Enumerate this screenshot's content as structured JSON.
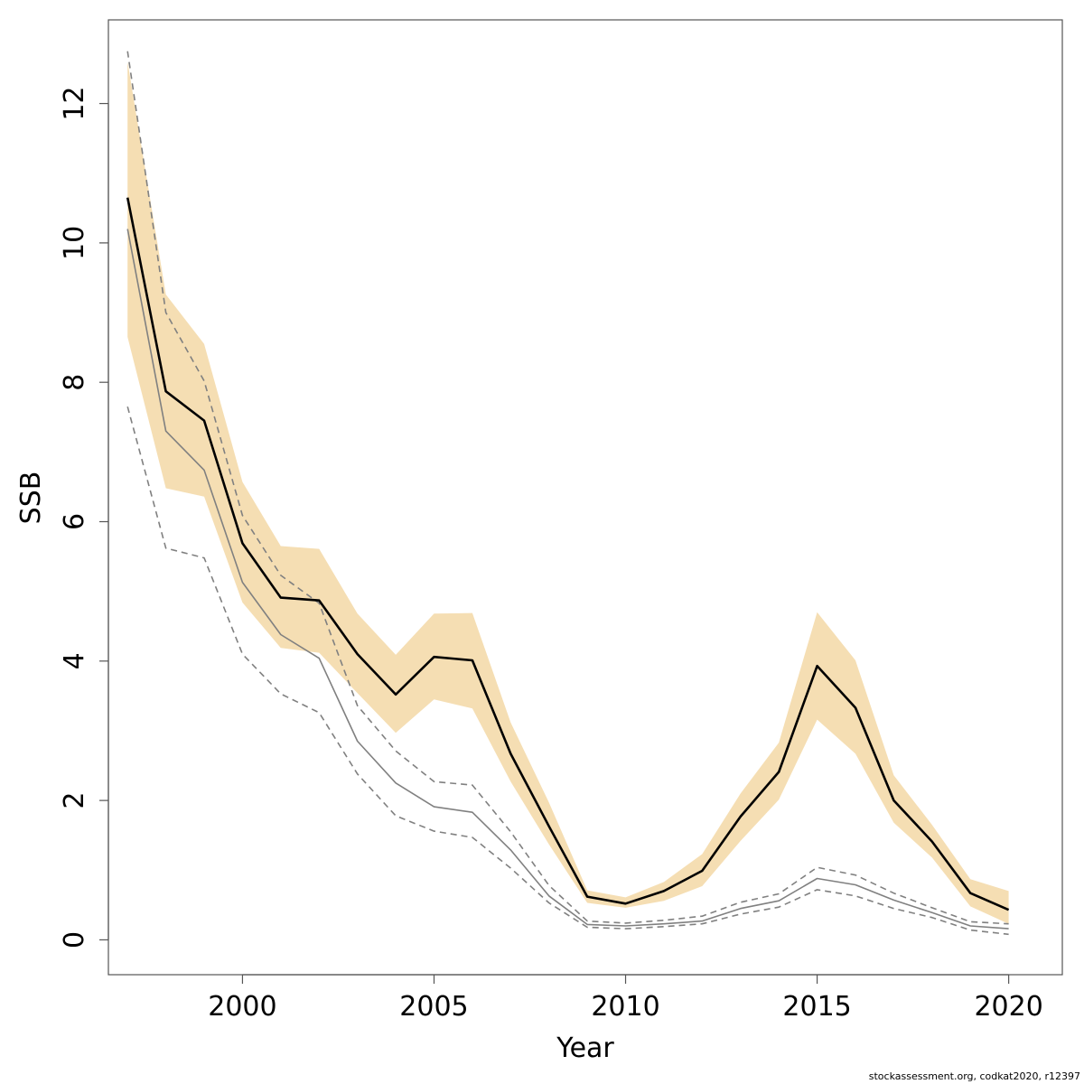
{
  "chart_data": {
    "type": "line",
    "xlabel": "Year",
    "ylabel": "SSB",
    "xlim": [
      1996.5,
      2021.4
    ],
    "ylim": [
      -0.5,
      13.2
    ],
    "xticks": [
      2000,
      2005,
      2010,
      2015,
      2020
    ],
    "yticks": [
      0,
      2,
      4,
      6,
      8,
      10,
      12
    ],
    "x": [
      1997,
      1998,
      1999,
      2000,
      2001,
      2002,
      2003,
      2004,
      2005,
      2006,
      2007,
      2008,
      2009,
      2010,
      2011,
      2012,
      2013,
      2014,
      2015,
      2016,
      2017,
      2018,
      2019,
      2020
    ],
    "band": {
      "color": "#F5DEB3",
      "lower": [
        8.65,
        6.48,
        6.36,
        4.84,
        4.19,
        4.12,
        3.54,
        2.97,
        3.45,
        3.32,
        2.27,
        1.37,
        0.53,
        0.46,
        0.56,
        0.77,
        1.42,
        2.01,
        3.16,
        2.67,
        1.68,
        1.18,
        0.48,
        0.23
      ],
      "upper": [
        12.6,
        9.26,
        8.55,
        6.57,
        5.65,
        5.61,
        4.68,
        4.09,
        4.68,
        4.69,
        3.12,
        1.97,
        0.71,
        0.61,
        0.83,
        1.23,
        2.1,
        2.83,
        4.7,
        4.01,
        2.36,
        1.65,
        0.87,
        0.7
      ]
    },
    "series": [
      {
        "color": "#000000",
        "style": "solid",
        "values": [
          10.65,
          7.87,
          7.45,
          5.69,
          4.91,
          4.87,
          4.1,
          3.52,
          4.06,
          4.01,
          2.67,
          1.63,
          0.62,
          0.52,
          0.7,
          0.99,
          1.77,
          2.41,
          3.93,
          3.33,
          2.0,
          1.41,
          0.67,
          0.43
        ]
      },
      {
        "color": "#808080",
        "style": "solid",
        "values": [
          10.2,
          7.3,
          6.74,
          5.13,
          4.38,
          4.04,
          2.85,
          2.25,
          1.91,
          1.83,
          1.29,
          0.63,
          0.22,
          0.2,
          0.23,
          0.27,
          0.45,
          0.56,
          0.88,
          0.79,
          0.57,
          0.39,
          0.2,
          0.16
        ]
      },
      {
        "color": "#808080",
        "style": "dashed",
        "values": [
          12.75,
          9.0,
          8.02,
          6.09,
          5.23,
          4.83,
          3.36,
          2.71,
          2.27,
          2.22,
          1.55,
          0.78,
          0.27,
          0.24,
          0.28,
          0.34,
          0.54,
          0.66,
          1.04,
          0.93,
          0.67,
          0.46,
          0.26,
          0.23
        ]
      },
      {
        "color": "#808080",
        "style": "dashed",
        "values": [
          7.65,
          5.62,
          5.48,
          4.1,
          3.53,
          3.26,
          2.38,
          1.78,
          1.56,
          1.47,
          1.03,
          0.53,
          0.18,
          0.16,
          0.19,
          0.23,
          0.37,
          0.47,
          0.72,
          0.63,
          0.45,
          0.32,
          0.14,
          0.08
        ]
      }
    ],
    "grid": false,
    "footnote": "stockassessment.org, codkat2020, r12397"
  }
}
